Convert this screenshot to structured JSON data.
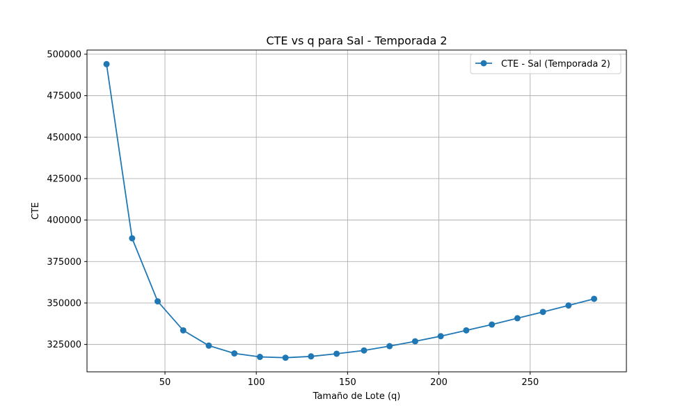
{
  "chart_data": {
    "type": "line",
    "title": "CTE vs q para Sal - Temporada 2",
    "xlabel": "Tamaño de Lote (q)",
    "ylabel": "CTE",
    "xlim": [
      7.3,
      302.7
    ],
    "ylim": [
      308500,
      502500
    ],
    "xticks": [
      50,
      100,
      150,
      200,
      250
    ],
    "yticks": [
      325000,
      350000,
      375000,
      400000,
      425000,
      450000,
      475000,
      500000
    ],
    "grid": true,
    "legend_position": "top-right",
    "series": [
      {
        "name": "CTE - Sal (Temporada 2)",
        "color": "#1f77b4",
        "marker": "circle",
        "x": [
          18,
          32,
          46,
          60,
          74,
          88,
          102,
          116,
          130,
          144,
          159,
          173,
          187,
          201,
          215,
          229,
          243,
          257,
          271,
          285
        ],
        "y": [
          494000,
          389000,
          351000,
          333500,
          324300,
          319600,
          317500,
          317000,
          317800,
          319400,
          321400,
          324000,
          326900,
          330000,
          333500,
          337000,
          340800,
          344600,
          348500,
          352500
        ]
      }
    ]
  }
}
